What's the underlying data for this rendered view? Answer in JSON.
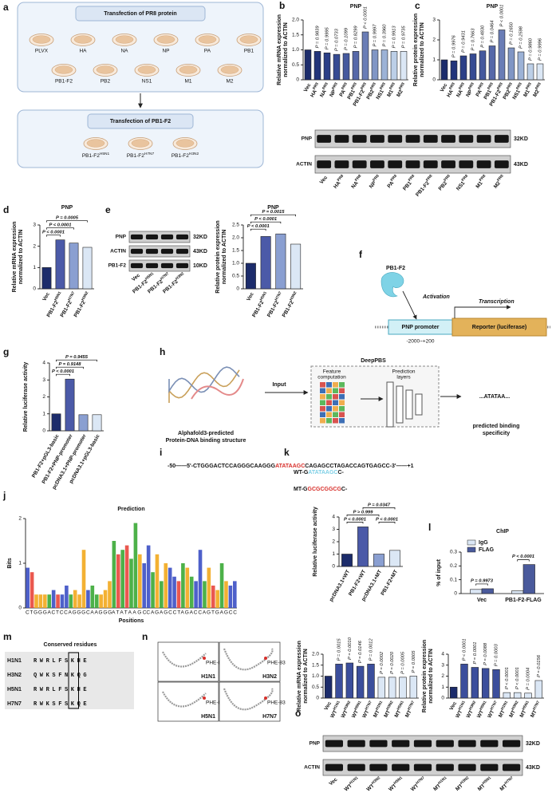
{
  "a": {
    "letter": "a",
    "header1": "Transfection of PR8 protein",
    "dishes1": [
      "PLVX",
      "HA",
      "NA",
      "NP",
      "PA",
      "PB1",
      "PB1-F2",
      "PB2",
      "NS1",
      "M1",
      "M2"
    ],
    "header2": "Transfection of PB1-F2",
    "dishes2": [
      {
        "base": "PB1-F2",
        "sup": "H5N1"
      },
      {
        "base": "PB1-F2",
        "sup": "H7N7"
      },
      {
        "base": "PB1-F2",
        "sup": "H3N2"
      }
    ]
  },
  "b": {
    "letter": "b",
    "chart": {
      "type": "bar",
      "title": "PNP",
      "ylabel": [
        "Relative mRNA expression",
        "normalized to ACTIN"
      ],
      "categories": [
        {
          "base": "Vec"
        },
        {
          "base": "HA",
          "sup": "PR8"
        },
        {
          "base": "NA",
          "sup": "PR8"
        },
        {
          "base": "NP",
          "sup": "PR8"
        },
        {
          "base": "PA",
          "sup": "PR8"
        },
        {
          "base": "PB1",
          "sup": "PR8"
        },
        {
          "base": "PB1-F2",
          "sup": "PR8"
        },
        {
          "base": "PB2",
          "sup": "PR8"
        },
        {
          "base": "NS1",
          "sup": "PR8"
        },
        {
          "base": "M1",
          "sup": "PR8"
        },
        {
          "base": "M2",
          "sup": "PR8"
        }
      ],
      "values": [
        1,
        0.95,
        0.9,
        0.85,
        0.88,
        0.95,
        1.6,
        1,
        1,
        0.95,
        0.95
      ],
      "colors": [
        "#1c2c6b",
        "#22347a",
        "#2b3f87",
        "#364b93",
        "#45599e",
        "#5668a9",
        "#6a7db6",
        "#8096c5",
        "#9cb2d6",
        "#bccfe7",
        "#dbe7f5"
      ],
      "ylim": [
        0,
        2
      ],
      "yticks": [
        0,
        0.5,
        {
          "value": 1,
          "label": "1.0"
        },
        1.5,
        {
          "value": 2,
          "label": "2.0"
        }
      ],
      "pvalues": [
        "P = 0.9839",
        "P = 0.9995",
        "P = 0.0733",
        "P = 0.1099",
        "P = 0.8299",
        "P < 0.0001",
        "P = 0.9997",
        "P = 0.3960",
        "P = 0.9913",
        "P = 0.9735"
      ]
    }
  },
  "c": {
    "letter": "c",
    "chart": {
      "type": "bar",
      "title": "PNP",
      "ylabel": [
        "Relative protein expression",
        "normalized to ACTIN"
      ],
      "categories": [
        {
          "base": "Vec"
        },
        {
          "base": "HA",
          "sup": "PR8"
        },
        {
          "base": "NA",
          "sup": "PR8"
        },
        {
          "base": "NP",
          "sup": "PR8"
        },
        {
          "base": "PA",
          "sup": "PR8"
        },
        {
          "base": "PB1",
          "sup": "PR8"
        },
        {
          "base": "PB1-F2",
          "sup": "PR8"
        },
        {
          "base": "PB2",
          "sup": "PR8"
        },
        {
          "base": "NS1",
          "sup": "PR8"
        },
        {
          "base": "M1",
          "sup": "PR8"
        },
        {
          "base": "M2",
          "sup": "PR8"
        }
      ],
      "values": [
        1,
        0.95,
        1.2,
        1.3,
        1.45,
        1.7,
        2.5,
        1.6,
        1.4,
        0.8,
        0.8
      ],
      "colors": [
        "#1c2c6b",
        "#22347a",
        "#2b3f87",
        "#364b93",
        "#45599e",
        "#5668a9",
        "#6a7db6",
        "#8096c5",
        "#9cb2d6",
        "#bccfe7",
        "#dbe7f5"
      ],
      "ylim": [
        0,
        3
      ],
      "yticks": [
        0,
        1,
        2,
        3
      ],
      "pvalues": [
        "P = 0.9976",
        "P = 0.9431",
        "P = 0.7663",
        "P = 0.4830",
        "P = 0.0464",
        "P < 0.0001",
        "P = 0.1650",
        "P = 0.2598",
        "P = 0.9860",
        "P = 0.9996"
      ]
    }
  },
  "bc_blot": {
    "rows": [
      {
        "name": "PNP",
        "size": "32KD"
      },
      {
        "name": "ACTIN",
        "size": "43KD"
      }
    ],
    "lanes": [
      {
        "base": "Vec"
      },
      {
        "base": "HA",
        "sup": "PR8"
      },
      {
        "base": "NA",
        "sup": "PR8"
      },
      {
        "base": "NP",
        "sup": "PR8"
      },
      {
        "base": "PA",
        "sup": "PR8"
      },
      {
        "base": "PB1",
        "sup": "PR8"
      },
      {
        "base": "PB1-F2",
        "sup": "PR8"
      },
      {
        "base": "PB2",
        "sup": "PR8"
      },
      {
        "base": "NS1",
        "sup": "PR8"
      },
      {
        "base": "M1",
        "sup": "PR8"
      },
      {
        "base": "M2",
        "sup": "PR8"
      }
    ]
  },
  "d": {
    "letter": "d",
    "chart": {
      "type": "bar",
      "title": "PNP",
      "ylabel": [
        "Relative mRNA expression",
        "normalized to ACTIN"
      ],
      "categories": [
        {
          "base": "Vec"
        },
        {
          "base": "PB1-F2",
          "sup": "H5N1"
        },
        {
          "base": "PB1-F2",
          "sup": "H7N7"
        },
        {
          "base": "PB1-F2",
          "sup": "H3N2"
        }
      ],
      "values": [
        1,
        2.3,
        2.15,
        1.95
      ],
      "colors": [
        "#1c2c6b",
        "#4b5aa8",
        "#8a9fd1",
        "#dbe7f5"
      ],
      "ylim": [
        0,
        3
      ],
      "yticks": [
        0,
        1,
        2,
        3
      ],
      "pvalues": [
        "P < 0.0001",
        "P < 0.0001",
        "P = 0.0005"
      ]
    }
  },
  "e": {
    "letter": "e",
    "blot": {
      "rows": [
        {
          "name": "PNP",
          "size": "32KD"
        },
        {
          "name": "ACTIN",
          "size": "43KD"
        },
        {
          "name": "PB1-F2",
          "size": "10KD"
        }
      ],
      "lanes": [
        {
          "base": "Vec"
        },
        {
          "base": "PB1-F2",
          "sup": "H5N1"
        },
        {
          "base": "PB1-F2",
          "sup": "H7N7"
        },
        {
          "base": "PB1-F2",
          "sup": "H3N2"
        }
      ]
    },
    "chart": {
      "type": "bar",
      "title": "PNP",
      "ylabel": [
        "Relative protein expression",
        "normalized to ACTIN"
      ],
      "categories": [
        {
          "base": "Vec"
        },
        {
          "base": "PB1-F2",
          "sup": "H5N1"
        },
        {
          "base": "PB1-F2",
          "sup": "H7N7"
        },
        {
          "base": "PB1-F2",
          "sup": "H3N2"
        }
      ],
      "values": [
        1,
        2.05,
        2.15,
        1.75
      ],
      "colors": [
        "#1c2c6b",
        "#4b5aa8",
        "#8a9fd1",
        "#dbe7f5"
      ],
      "ylim": [
        0,
        2.5
      ],
      "yticks": [
        0,
        0.5,
        {
          "value": 1,
          "label": "1.0"
        },
        1.5,
        {
          "value": 2,
          "label": "2.0"
        },
        2.5
      ],
      "pvalues": [
        "P < 0.0001",
        "P < 0.0001",
        "P = 0.0015"
      ]
    }
  },
  "f": {
    "letter": "f",
    "protein": "PB1-F2",
    "activation": "Activation",
    "transcription": "Transcription",
    "promoter": "PNP promoter",
    "reporter": "Reporter (luciferase)",
    "range": "-2000~+200"
  },
  "g": {
    "letter": "g",
    "chart": {
      "type": "bar",
      "ylabel": [
        "Relative luciferase activity"
      ],
      "categories": [
        "PB1-F2+pGL3-basic",
        "PB1-F2+PNP-promoter",
        "pcDNA3.1+PNP-promoter",
        "pcDNA3.1+pGL3-basic"
      ],
      "values": [
        1,
        3.05,
        0.95,
        0.95
      ],
      "colors": [
        "#1c2c6b",
        "#4b5aa8",
        "#8a9fd1",
        "#dbe7f5"
      ],
      "ylim": [
        0,
        4
      ],
      "yticks": [
        0,
        1,
        2,
        3,
        4
      ],
      "pvalues": [
        "P < 0.0001",
        "P = 0.9148",
        "P = 0.9455"
      ]
    }
  },
  "h": {
    "letter": "h",
    "model": "DeepPBS",
    "input": "Input",
    "feature": [
      "Feature",
      "computation"
    ],
    "prediction": [
      "Prediction",
      "layers"
    ],
    "output": "...ATATAA...",
    "structure": [
      "Alphafold3-predicted",
      "Protein-DNA binding structure"
    ],
    "specificity": [
      "predicted binding",
      "specificity"
    ]
  },
  "i": {
    "letter": "i",
    "pre": "-50——5'-CTGGGACTCCAGGGCAAGGG",
    "core": "ATATAAGC",
    "post": "CAGAGCCTAGACCAGTGAGCC-3'——+1"
  },
  "j": {
    "letter": "j",
    "chart": {
      "type": "logo",
      "title": "Prediction",
      "ylabel": "Bits",
      "xlabel": "Positions",
      "sequence_pre": "CTGGGACTCCAGGGCAAGGG",
      "sequence_core": "ATATAAGC",
      "sequence_post": "CAGAGCCTAGACCAGTGAGCC",
      "values": [
        0.9,
        0.8,
        0.3,
        0.3,
        0.3,
        0.3,
        0.4,
        0.3,
        0.3,
        0.5,
        0.3,
        0.4,
        0.3,
        1.3,
        0.4,
        0.5,
        0.3,
        0.3,
        0.4,
        0.6,
        1.5,
        1.2,
        1.3,
        1.4,
        1.1,
        1.9,
        1.2,
        1,
        1.4,
        0.8,
        1.2,
        0.6,
        1,
        0.9,
        0.7,
        0.6,
        1,
        0.9,
        0.7,
        0.6,
        1.3,
        0.6,
        0.9,
        0.5,
        0.4,
        1,
        0.6,
        0.5,
        0.6
      ],
      "ylim": [
        0,
        2
      ],
      "yticks": [
        0,
        1,
        2
      ],
      "base_colors": {
        "A": "#3aa935",
        "C": "#3b4fc4",
        "G": "#f2a81d",
        "T": "#e8463c"
      }
    }
  },
  "k": {
    "letter": "k",
    "wt": {
      "pre": "WT-G",
      "core": "ATATAAGC",
      "post": "C-"
    },
    "mt": {
      "pre": "MT-G",
      "core": "GCGCGGCG",
      "post": "C-"
    },
    "chart": {
      "type": "bar",
      "ylabel": [
        "Relative luciferase activity"
      ],
      "categories": [
        "pcDNA3.1+WT",
        "PB1-F2+WT",
        "pcDNA3.1+MT",
        "PB1-F2+MT"
      ],
      "values": [
        1,
        3.2,
        1,
        1.3
      ],
      "colors": [
        "#1c2c6b",
        "#4b5aa8",
        "#8a9fd1",
        "#dbe7f5"
      ],
      "ylim": [
        0,
        4
      ],
      "yticks": [
        0,
        1,
        2,
        3,
        4
      ],
      "pvalues": [
        "P < 0.0001",
        "P < 0.0001",
        "P > 0.999",
        "P = 0.0347"
      ]
    }
  },
  "l": {
    "letter": "l",
    "chart": {
      "type": "grouped_bar",
      "title": "ChIP",
      "ylabel": [
        "% of input"
      ],
      "categories": [
        "Vec",
        "PB1-F2-FLAG"
      ],
      "series": [
        {
          "name": "IgG",
          "color": "#dbe7f5",
          "values": [
            0.03,
            0.02
          ]
        },
        {
          "name": "FLAG",
          "color": "#4a5a9c",
          "values": [
            0.035,
            0.21
          ]
        }
      ],
      "ylim": [
        0,
        0.3
      ],
      "yticks": [
        0,
        0.1,
        0.2,
        0.3
      ],
      "pvalues": [
        "P = 0.9973",
        "P < 0.0001"
      ],
      "legend": "upper left"
    }
  },
  "m": {
    "letter": "m",
    "title": "Conserved residues",
    "rows": [
      {
        "name": "H1N1",
        "residues": "RWRLFSKHE",
        "color": "#3d9bd8"
      },
      {
        "name": "H3N2",
        "residues": "QWKSFNKQG",
        "color": "#c9262c"
      },
      {
        "name": "H5N1",
        "residues": "RWRLFSKHE",
        "color": "#3d9bd8"
      },
      {
        "name": "H7N7",
        "residues": "RWKSFSKQE",
        "color": "#c9262c"
      }
    ]
  },
  "n": {
    "letter": "n",
    "residue": "PHE-83",
    "strains": [
      "H1N1",
      "H3N2",
      "H5N1",
      "H7N7"
    ]
  },
  "o": {
    "letter": "o",
    "mrna": {
      "type": "bar",
      "ylabel": [
        "Relative mRNA expression",
        "normalized to ACTIN"
      ],
      "categories": [
        {
          "base": "Vec"
        },
        {
          "base": "WT",
          "sup": "H1N1"
        },
        {
          "base": "WT",
          "sup": "H3N2"
        },
        {
          "base": "WT",
          "sup": "H5N1"
        },
        {
          "base": "WT",
          "sup": "H7N7"
        },
        {
          "base": "MT",
          "sup": "H1N1"
        },
        {
          "base": "MT",
          "sup": "H3N2"
        },
        {
          "base": "MT",
          "sup": "H5N1"
        },
        {
          "base": "MT",
          "sup": "H7N7"
        }
      ],
      "values": [
        1,
        1.55,
        1.6,
        1.45,
        1.55,
        0.95,
        0.95,
        0.95,
        1
      ],
      "colors": [
        "#1c2c6b",
        "#3b4e9c",
        "#3b4e9c",
        "#3b4e9c",
        "#3b4e9c",
        "#dbe7f5",
        "#dbe7f5",
        "#dbe7f5",
        "#dbe7f5"
      ],
      "ylim": [
        0,
        2
      ],
      "yticks": [
        0,
        0.5,
        {
          "value": 1,
          "label": "1.0"
        },
        1.5,
        {
          "value": 2,
          "label": "2.0"
        }
      ],
      "pvalues": [
        "P = 0.0015",
        "P = 0.0010",
        "P = 0.0146",
        "P = 0.0012",
        "P = 0.0002",
        "P = 0.0020",
        "P = 0.0005",
        "P = 0.0005"
      ]
    },
    "protein": {
      "type": "bar",
      "ylabel": [
        "Relative protein expression",
        "normalized to ACTIN"
      ],
      "categories": [
        {
          "base": "Vec"
        },
        {
          "base": "WT",
          "sup": "H1N1"
        },
        {
          "base": "WT",
          "sup": "H3N2"
        },
        {
          "base": "WT",
          "sup": "H5N1"
        },
        {
          "base": "WT",
          "sup": "H7N7"
        },
        {
          "base": "MT",
          "sup": "H1N1"
        },
        {
          "base": "MT",
          "sup": "H3N2"
        },
        {
          "base": "MT",
          "sup": "H5N1"
        },
        {
          "base": "MT",
          "sup": "H7N7"
        }
      ],
      "values": [
        1,
        3.1,
        2.8,
        2.7,
        2.6,
        0.5,
        0.5,
        0.45,
        1.6
      ],
      "colors": [
        "#1c2c6b",
        "#3b4e9c",
        "#3b4e9c",
        "#3b4e9c",
        "#3b4e9c",
        "#dbe7f5",
        "#dbe7f5",
        "#dbe7f5",
        "#dbe7f5"
      ],
      "ylim": [
        0,
        4
      ],
      "yticks": [
        0,
        1,
        2,
        3,
        4
      ],
      "pvalues": [
        "P < 0.0001",
        "P = 0.0001",
        "P = 0.0088",
        "P = 0.0003",
        "P < 0.0001",
        "P < 0.0001",
        "P = 0.0004",
        "P = 0.0156"
      ]
    },
    "blot": {
      "rows": [
        {
          "name": "PNP",
          "size": "32KD"
        },
        {
          "name": "ACTIN",
          "size": "43KD"
        }
      ],
      "lanes": [
        {
          "base": "Vec"
        },
        {
          "base": "WT",
          "sup": "H1N1"
        },
        {
          "base": "WT",
          "sup": "H3N2"
        },
        {
          "base": "WT",
          "sup": "H5N1"
        },
        {
          "base": "WT",
          "sup": "H7N7"
        },
        {
          "base": "MT",
          "sup": "H1N1"
        },
        {
          "base": "MT",
          "sup": "H3N2"
        },
        {
          "base": "MT",
          "sup": "H5N1"
        },
        {
          "base": "MT",
          "sup": "H7N7"
        }
      ]
    }
  }
}
